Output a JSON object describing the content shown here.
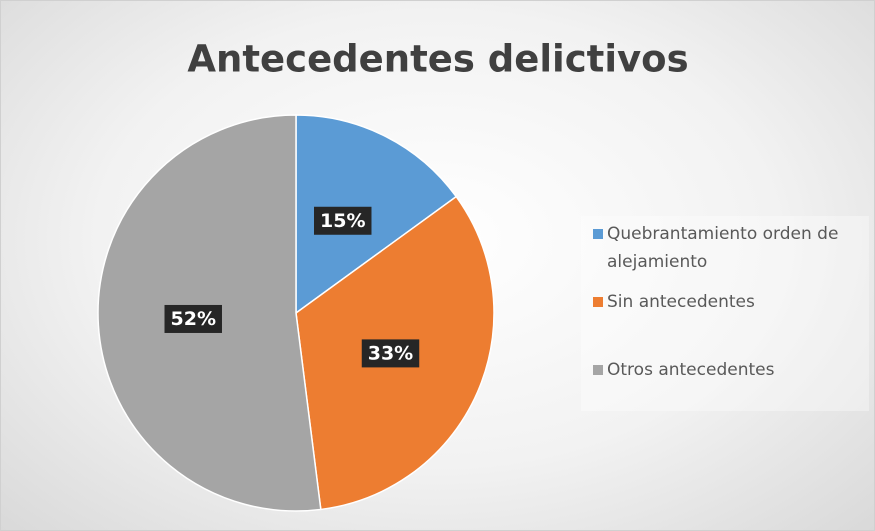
{
  "chart_data": {
    "type": "pie",
    "title": "Antecedentes delictivos",
    "categories": [
      "Quebrantamiento orden de alejamiento",
      "Sin antecedentes",
      "Otros antecedentes"
    ],
    "values": [
      15,
      33,
      52
    ],
    "value_labels": [
      "15%",
      "33%",
      "52%"
    ],
    "colors": [
      "#5b9bd5",
      "#ed7d31",
      "#a5a5a5"
    ],
    "legend": "right"
  }
}
